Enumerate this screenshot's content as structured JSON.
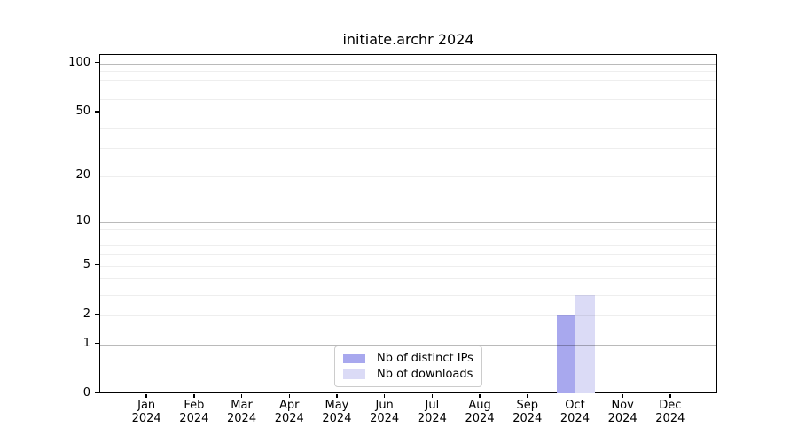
{
  "chart_data": {
    "type": "bar",
    "title": "initiate.archr 2024",
    "categories": [
      "Jan",
      "Feb",
      "Mar",
      "Apr",
      "May",
      "Jun",
      "Jul",
      "Aug",
      "Sep",
      "Oct",
      "Nov",
      "Dec"
    ],
    "x_year_label": "2024",
    "series": [
      {
        "name": "Nb of distinct IPs",
        "color": "#a8a8ee",
        "values": [
          0,
          0,
          0,
          0,
          0,
          0,
          0,
          0,
          0,
          2,
          0,
          0
        ]
      },
      {
        "name": "Nb of downloads",
        "color": "#dbdbf6",
        "values": [
          0,
          0,
          0,
          0,
          0,
          0,
          0,
          0,
          0,
          3,
          0,
          0
        ]
      }
    ],
    "yscale": "log1p",
    "ylim": [
      0,
      112
    ],
    "yticks": [
      0,
      1,
      2,
      5,
      10,
      20,
      50,
      100
    ],
    "ytick_labels": [
      "0",
      "1",
      "2",
      "5",
      "10",
      "20",
      "50",
      "100"
    ],
    "major_grid_values": [
      1,
      10,
      100
    ],
    "minor_grid_values": [
      2,
      3,
      4,
      5,
      6,
      7,
      8,
      9,
      20,
      30,
      40,
      50,
      60,
      70,
      80,
      90
    ],
    "grid": true,
    "legend_position": "lower center",
    "colors": {
      "axis": "#000000",
      "major_grid": "#bdbdbd",
      "minor_grid": "#efefef",
      "background": "#ffffff",
      "legend_border": "#cccccc"
    }
  }
}
